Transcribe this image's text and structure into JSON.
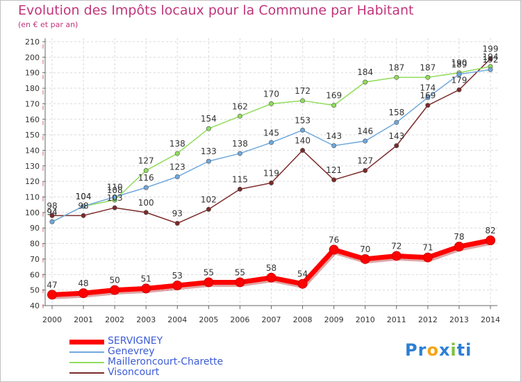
{
  "header": {
    "title": "Evolution des Impôts locaux pour la Commune par Habitant",
    "subtitle": "(en € et par an)"
  },
  "logo": {
    "parts": [
      {
        "text": "Pr",
        "color": "#2c7fd4"
      },
      {
        "text": "o",
        "color": "#f2a51a"
      },
      {
        "text": "x",
        "color": "#2c7fd4"
      },
      {
        "text": "i",
        "color": "#7cc242"
      },
      {
        "text": "ti",
        "color": "#2c7fd4"
      }
    ]
  },
  "chart_data": {
    "type": "line",
    "title": "Evolution des Impôts locaux pour la Commune par Habitant",
    "subtitle": "(en € et par an)",
    "x": [
      2000,
      2001,
      2002,
      2003,
      2004,
      2005,
      2006,
      2007,
      2008,
      2009,
      2010,
      2011,
      2012,
      2013,
      2014
    ],
    "x_tick_labels": [
      "2000",
      "2001",
      "2002",
      "2003",
      "2004",
      "2005",
      "2006",
      "2007",
      "2008",
      "2009",
      "2010",
      "2011",
      "2012",
      "2013",
      "2014"
    ],
    "y_ticks": [
      40,
      50,
      60,
      70,
      80,
      90,
      100,
      110,
      120,
      130,
      140,
      150,
      160,
      170,
      180,
      190,
      200,
      210
    ],
    "y_tick_labels": [
      "40",
      "50",
      "60",
      "70",
      "80",
      "90",
      "100",
      "110",
      "120",
      "130",
      "140",
      "150",
      "160",
      "170",
      "180",
      "190",
      "200",
      "210"
    ],
    "ylim": [
      40,
      210
    ],
    "grid": true,
    "legend_position": "bottom-left",
    "series": [
      {
        "name": "SERVIGNEY",
        "color": "#ff0000",
        "values": [
          47,
          48,
          50,
          51,
          53,
          55,
          55,
          58,
          54,
          76,
          70,
          72,
          71,
          78,
          82
        ]
      },
      {
        "name": "Genevrey",
        "color": "#6fa8dc",
        "values": [
          94,
          104,
          110,
          116,
          123,
          133,
          138,
          145,
          153,
          143,
          146,
          158,
          174,
          189,
          192
        ]
      },
      {
        "name": "Mailleroncourt-Charette",
        "color": "#8fdc5a",
        "values": [
          94,
          104,
          108,
          127,
          138,
          154,
          162,
          170,
          172,
          169,
          184,
          187,
          187,
          190,
          194
        ]
      },
      {
        "name": "Visoncourt",
        "color": "#7b2a2a",
        "values": [
          98,
          98,
          103,
          100,
          93,
          102,
          115,
          119,
          140,
          121,
          127,
          143,
          169,
          179,
          199
        ]
      }
    ]
  }
}
